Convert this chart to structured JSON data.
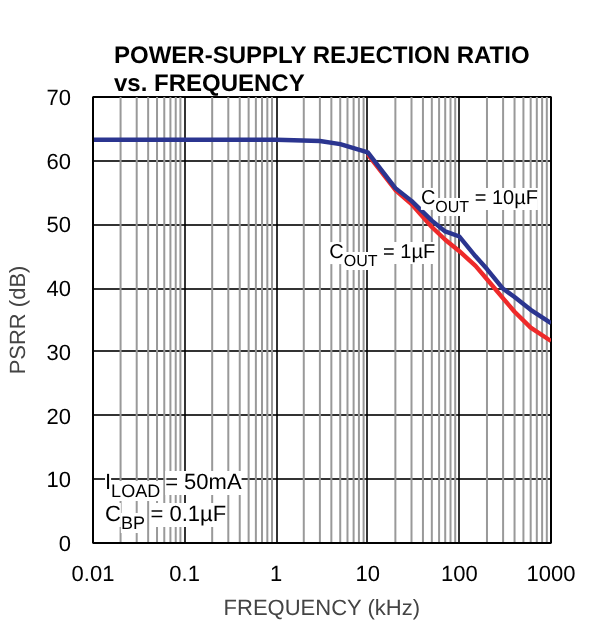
{
  "chart_data": {
    "type": "line",
    "title": "POWER-SUPPLY REJECTION RATIO\nvs. FREQUENCY",
    "xlabel": "FREQUENCY (kHz)",
    "ylabel": "PSRR (dB)",
    "log": "x",
    "x": [
      0.01,
      1,
      3,
      5,
      10,
      20,
      30,
      50,
      70,
      100,
      150,
      200,
      300,
      400,
      600,
      1000
    ],
    "series": [
      {
        "name": "C$_{OUT}$ = 10µF",
        "color": "#2b3590",
        "values": [
          63.3,
          63.3,
          63.1,
          62.6,
          61.3,
          55.7,
          53.7,
          50.6,
          48.9,
          48.1,
          45,
          43,
          39.9,
          38.6,
          36.6,
          34.5
        ]
      },
      {
        "name": "C$_{OUT}$ = 1µF",
        "color": "#ee2a2a",
        "values": [
          null,
          null,
          null,
          null,
          61.0,
          55.4,
          53.2,
          49.6,
          47.6,
          45.8,
          43.5,
          41.4,
          38.4,
          36.3,
          33.8,
          31.7
        ]
      }
    ],
    "xlim": [
      0.01,
      1000
    ],
    "xticks": [
      0.01,
      0.1,
      1,
      10,
      100,
      1000
    ],
    "ylim": [
      0,
      70
    ],
    "yticks": [
      0,
      10,
      20,
      30,
      40,
      50,
      60,
      70
    ],
    "grid": true,
    "annotations": [
      "I$_{LOAD}$ = 50mA",
      "C$_{BP}$ = 0.1µF"
    ]
  }
}
